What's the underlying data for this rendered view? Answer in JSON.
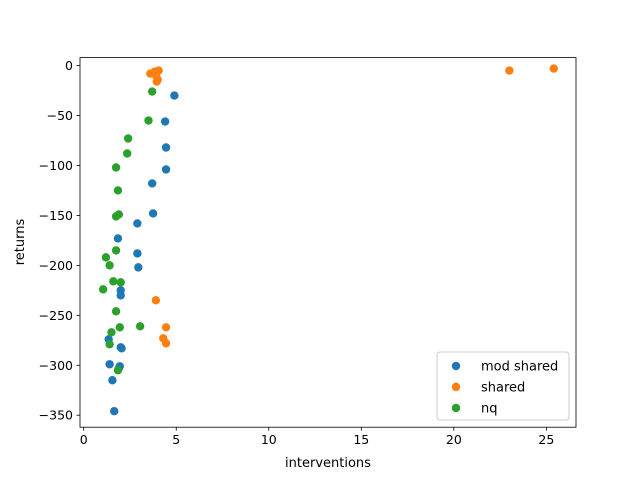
{
  "chart_data": {
    "type": "scatter",
    "title": "",
    "xlabel": "interventions",
    "ylabel": "returns",
    "xlim": [
      -0.2,
      26.6
    ],
    "ylim": [
      -362,
      8
    ],
    "xticks": [
      0,
      5,
      10,
      15,
      20,
      25
    ],
    "yticks": [
      0,
      -50,
      -100,
      -150,
      -200,
      -250,
      -300,
      -350
    ],
    "xtick_labels": [
      "0",
      "5",
      "10",
      "15",
      "20",
      "25"
    ],
    "ytick_labels": [
      "0",
      "−50",
      "−100",
      "−150",
      "−200",
      "−250",
      "−300",
      "−350"
    ],
    "grid": false,
    "legend_position": "lower-right",
    "series": [
      {
        "name": "mod shared",
        "color": "#1f77b4",
        "points": [
          [
            4.9,
            -30
          ],
          [
            4.4,
            -56
          ],
          [
            4.45,
            -82
          ],
          [
            4.45,
            -104
          ],
          [
            3.7,
            -118
          ],
          [
            3.75,
            -148
          ],
          [
            2.9,
            -158
          ],
          [
            1.85,
            -173
          ],
          [
            2.9,
            -188
          ],
          [
            2.95,
            -202
          ],
          [
            2.0,
            -225
          ],
          [
            2.0,
            -230
          ],
          [
            1.35,
            -274
          ],
          [
            2.0,
            -282
          ],
          [
            2.05,
            -283
          ],
          [
            1.4,
            -299
          ],
          [
            1.95,
            -301
          ],
          [
            1.9,
            -303
          ],
          [
            1.55,
            -315
          ],
          [
            1.65,
            -346
          ]
        ]
      },
      {
        "name": "shared",
        "color": "#ff7f0e",
        "points": [
          [
            3.6,
            -8
          ],
          [
            3.85,
            -6
          ],
          [
            3.9,
            -10
          ],
          [
            4.0,
            -14
          ],
          [
            4.05,
            -5
          ],
          [
            3.95,
            -16
          ],
          [
            3.9,
            -235
          ],
          [
            4.45,
            -262
          ],
          [
            4.3,
            -273
          ],
          [
            4.45,
            -278
          ],
          [
            23.0,
            -5
          ],
          [
            25.4,
            -3
          ]
        ]
      },
      {
        "name": "nq",
        "color": "#2ca02c",
        "points": [
          [
            3.7,
            -26
          ],
          [
            3.5,
            -55
          ],
          [
            2.4,
            -73
          ],
          [
            2.35,
            -88
          ],
          [
            1.75,
            -102
          ],
          [
            1.85,
            -125
          ],
          [
            1.9,
            -149
          ],
          [
            1.75,
            -151
          ],
          [
            1.75,
            -185
          ],
          [
            1.2,
            -192
          ],
          [
            1.4,
            -200
          ],
          [
            1.05,
            -224
          ],
          [
            1.6,
            -216
          ],
          [
            2.0,
            -217
          ],
          [
            1.75,
            -246
          ],
          [
            3.05,
            -261
          ],
          [
            1.95,
            -262
          ],
          [
            1.5,
            -267
          ],
          [
            1.4,
            -279
          ],
          [
            1.85,
            -305
          ]
        ]
      }
    ]
  }
}
